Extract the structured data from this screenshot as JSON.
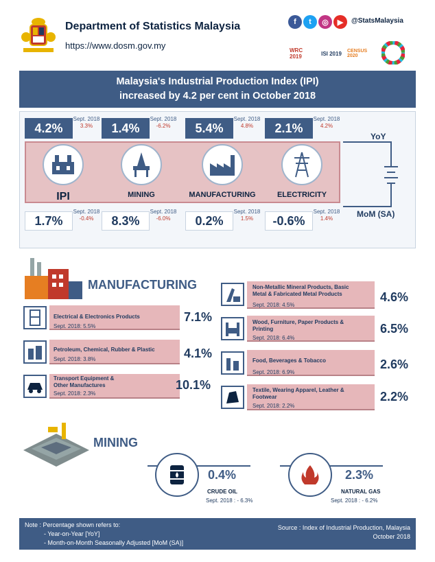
{
  "header": {
    "org_name": "Department of Statistics Malaysia",
    "url": "https://www.dosm.gov.my",
    "social_handle": "@StatsMalaysia",
    "colors": {
      "facebook": "#3b5998",
      "twitter": "#1da1f2",
      "instagram": "#c13584",
      "youtube": "#e52d27"
    }
  },
  "title": {
    "line1": "Malaysia's Industrial Production Index (IPI)",
    "line2": "increased by 4.2 per cent in October 2018"
  },
  "indices": [
    {
      "name": "IPI",
      "yoy": "4.2%",
      "yoy_sept_label": "Sept. 2018",
      "yoy_sept": "3.3%",
      "mom": "1.7%",
      "mom_sept_label": "Sept. 2018",
      "mom_sept": "-0.4%"
    },
    {
      "name": "MINING",
      "yoy": "1.4%",
      "yoy_sept_label": "Sept. 2018",
      "yoy_sept": "-6.2%",
      "mom": "8.3%",
      "mom_sept_label": "Sept. 2018",
      "mom_sept": "-6.0%"
    },
    {
      "name": "MANUFACTURING",
      "yoy": "5.4%",
      "yoy_sept_label": "Sept. 2018",
      "yoy_sept": "4.8%",
      "mom": "0.2%",
      "mom_sept_label": "Sept. 2018",
      "mom_sept": "1.5%"
    },
    {
      "name": "ELECTRICITY",
      "yoy": "2.1%",
      "yoy_sept_label": "Sept. 2018",
      "yoy_sept": "4.2%",
      "mom": "-0.6%",
      "mom_sept_label": "Sept. 2018",
      "mom_sept": "1.4%"
    }
  ],
  "legend": {
    "yoy": "YoY",
    "mom": "MoM (SA)"
  },
  "manufacturing": {
    "title": "MANUFACTURING",
    "left": [
      {
        "name": "Electrical & Electronics Products",
        "sept": "Sept. 2018: 5.5%",
        "value": "7.1%",
        "icon": "electronics-icon"
      },
      {
        "name": "Petroleum, Chemical, Rubber & Plastic",
        "sept": "Sept. 2018: 3.8%",
        "value": "4.1%",
        "icon": "petroleum-icon"
      },
      {
        "name": "Transport Equipment & Other Manufactures",
        "sept": "Sept. 2018: 2.3%",
        "value": "10.1%",
        "icon": "car-icon"
      }
    ],
    "right": [
      {
        "name": "Non-Metallic Mineral Products, Basic Metal & Fabricated Metal Products",
        "sept": "Sept. 2018: 4.5%",
        "value": "4.6%",
        "icon": "metal-icon"
      },
      {
        "name": "Wood, Furniture, Paper Products & Printing",
        "sept": "Sept. 2018: 6.4%",
        "value": "6.5%",
        "icon": "furniture-icon"
      },
      {
        "name": "Food, Beverages & Tobacco",
        "sept": "Sept. 2018: 6.9%",
        "value": "2.6%",
        "icon": "food-icon"
      },
      {
        "name": "Textile, Wearing Apparel, Leather & Footwear",
        "sept": "Sept. 2018: 2.2%",
        "value": "2.2%",
        "icon": "textile-icon"
      }
    ]
  },
  "mining": {
    "title": "MINING",
    "items": [
      {
        "name": "CRUDE OIL",
        "value": "0.4%",
        "sept": "Sept. 2018 : - 6.3%"
      },
      {
        "name": "NATURAL GAS",
        "value": "2.3%",
        "sept": "Sept. 2018 : - 6.2%"
      }
    ]
  },
  "footer": {
    "note_title": "Note : Percentage shown refers to:",
    "note_1": "- Year-on-Year [YoY]",
    "note_2": "- Month-on-Month Seasonally Adjusted [MoM (SA)]",
    "source": "Source : Index of Industrial Production, Malaysia",
    "period": "October 2018"
  },
  "logos": {
    "wrc": "WRC 2019",
    "isi": "ISI 2019",
    "census": "CENSUS 2020"
  }
}
